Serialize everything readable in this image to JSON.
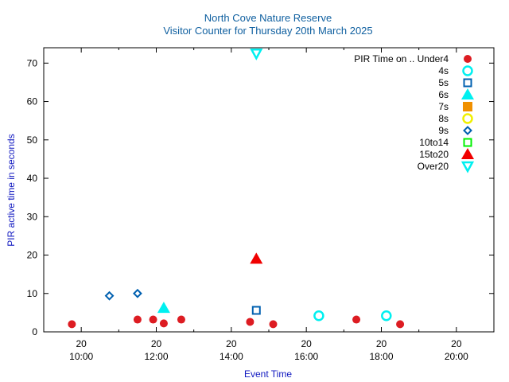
{
  "chart_data": {
    "type": "scatter",
    "title": "North Cove Nature Reserve",
    "subtitle": "Visitor Counter for Thursday 20th March 2025",
    "xlabel": "Event Time",
    "ylabel": "PIR active time in seconds",
    "xlim": [
      "09:00",
      "21:00"
    ],
    "ylim": [
      0,
      74
    ],
    "x_ticks": [
      {
        "value": "10:00",
        "labels": [
          "20",
          "10:00"
        ]
      },
      {
        "value": "12:00",
        "labels": [
          "20",
          "12:00"
        ]
      },
      {
        "value": "14:00",
        "labels": [
          "20",
          "14:00"
        ]
      },
      {
        "value": "16:00",
        "labels": [
          "20",
          "16:00"
        ]
      },
      {
        "value": "18:00",
        "labels": [
          "20",
          "18:00"
        ]
      },
      {
        "value": "20:00",
        "labels": [
          "20",
          "20:00"
        ]
      }
    ],
    "y_ticks": [
      0,
      10,
      20,
      30,
      40,
      50,
      60,
      70
    ],
    "grid": false,
    "legend": {
      "position": "top-right",
      "title": "PIR Time on .."
    },
    "series": [
      {
        "name": "Under4",
        "color": "#dd1c22",
        "marker": "circle-filled",
        "points": [
          [
            "09:45",
            2
          ],
          [
            "11:30",
            3.2
          ],
          [
            "11:55",
            3.2
          ],
          [
            "12:12",
            2.2
          ],
          [
            "12:40",
            3.2
          ],
          [
            "14:30",
            2.6
          ],
          [
            "15:07",
            2
          ],
          [
            "17:20",
            3.2
          ],
          [
            "18:30",
            2
          ]
        ]
      },
      {
        "name": "4s",
        "color": "#00f0f0",
        "marker": "circle-open",
        "points": [
          [
            "16:20",
            4.2
          ],
          [
            "18:08",
            4.2
          ]
        ]
      },
      {
        "name": "5s",
        "color": "#0060b0",
        "marker": "square-open",
        "points": [
          [
            "14:40",
            5.6
          ]
        ]
      },
      {
        "name": "6s",
        "color": "#00f0f0",
        "marker": "triangle-up-filled",
        "points": [
          [
            "12:12",
            6.2
          ]
        ]
      },
      {
        "name": "7s",
        "color": "#f09000",
        "marker": "square-filled",
        "points": []
      },
      {
        "name": "8s",
        "color": "#f0f000",
        "marker": "circle-open",
        "points": []
      },
      {
        "name": "9s",
        "color": "#0060b0",
        "marker": "diamond-open",
        "points": [
          [
            "10:45",
            9.4
          ],
          [
            "11:30",
            10
          ]
        ]
      },
      {
        "name": "10to14",
        "color": "#00f000",
        "marker": "square-open",
        "points": []
      },
      {
        "name": "15to20",
        "color": "#f00000",
        "marker": "triangle-up-filled",
        "points": [
          [
            "14:40",
            19
          ]
        ]
      },
      {
        "name": "Over20",
        "color": "#00f0f0",
        "marker": "triangle-down-open",
        "points": [
          [
            "14:40",
            72.5
          ]
        ]
      }
    ]
  }
}
